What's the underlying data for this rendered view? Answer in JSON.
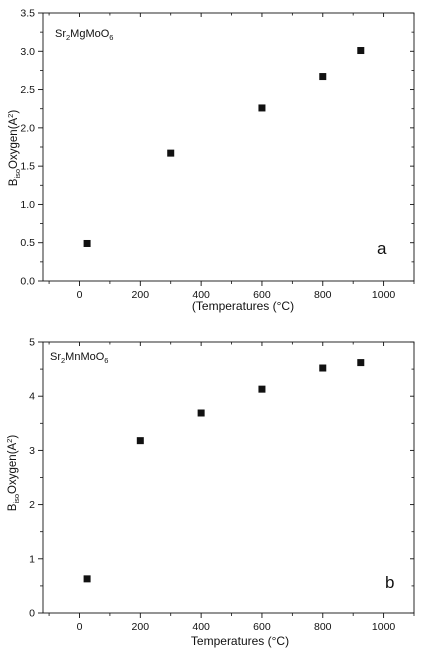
{
  "chart_data": [
    {
      "type": "scatter",
      "compound": {
        "base": "Sr",
        "s1": "2",
        "mid": "MgMoO",
        "s2": "6"
      },
      "panel_label": "a",
      "xlabel": "(Temperatures (°C)",
      "ylabel": {
        "main": "B",
        "sub": "iso",
        "rest": "Oxygen(A",
        "sup": "2",
        "end": ")"
      },
      "xlim": [
        -120,
        1100
      ],
      "ylim": [
        0,
        3.5
      ],
      "x_ticks": [
        0,
        200,
        400,
        600,
        800,
        1000
      ],
      "y_ticks": [
        0.0,
        0.5,
        1.0,
        1.5,
        2.0,
        2.5,
        3.0,
        3.5
      ],
      "x_tick_labels": [
        "0",
        "200",
        "400",
        "600",
        "800",
        "1000"
      ],
      "y_tick_labels": [
        "0.0",
        "0.5",
        "1.0",
        "1.5",
        "2.0",
        "2.5",
        "3.0",
        "3.5"
      ],
      "points": [
        {
          "x": 25,
          "y": 0.49
        },
        {
          "x": 300,
          "y": 1.67
        },
        {
          "x": 600,
          "y": 2.26
        },
        {
          "x": 800,
          "y": 2.67
        },
        {
          "x": 925,
          "y": 3.01
        }
      ],
      "marker": "square",
      "marker_color": "#111111",
      "grid": false
    },
    {
      "type": "scatter",
      "compound": {
        "base": "Sr",
        "s1": "2",
        "mid": "MnMoO",
        "s2": "6"
      },
      "panel_label": "b",
      "xlabel": "Temperatures (°C)",
      "ylabel": {
        "main": "B",
        "sub": "iso",
        "rest": "Oxygen(A",
        "sup": "2",
        "end": ")"
      },
      "xlim": [
        -120,
        1100
      ],
      "ylim": [
        0,
        5
      ],
      "x_ticks": [
        0,
        200,
        400,
        600,
        800,
        1000
      ],
      "y_ticks": [
        0,
        1,
        2,
        3,
        4,
        5
      ],
      "x_tick_labels": [
        "0",
        "200",
        "400",
        "600",
        "800",
        "1000"
      ],
      "y_tick_labels": [
        "0",
        "1",
        "2",
        "3",
        "4",
        "5"
      ],
      "points": [
        {
          "x": 25,
          "y": 0.63
        },
        {
          "x": 200,
          "y": 3.18
        },
        {
          "x": 400,
          "y": 3.69
        },
        {
          "x": 600,
          "y": 4.13
        },
        {
          "x": 800,
          "y": 4.52
        },
        {
          "x": 925,
          "y": 4.62
        }
      ],
      "marker": "square",
      "marker_color": "#111111",
      "grid": false
    }
  ]
}
